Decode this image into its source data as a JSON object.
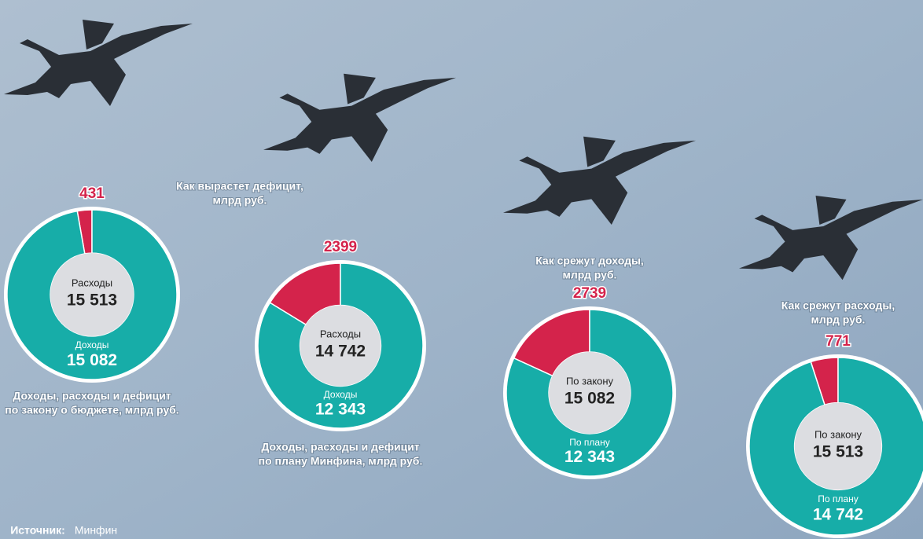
{
  "annotation": [
    "Как вырастет дефицит,",
    "млрд руб."
  ],
  "source_label": "Источник:",
  "source": "Минфин",
  "chart_data": [
    {
      "type": "donut",
      "title": [
        "Доходы, расходы и дефицит",
        "по закону о бюджете, млрд руб."
      ],
      "total_label": "Расходы",
      "total": 15513,
      "total_value_label": "15 513",
      "categories": [
        null,
        "Доходы"
      ],
      "values": [
        431,
        15082
      ],
      "value_labels": [
        "431",
        "15 082"
      ],
      "colors": [
        "#d4234b",
        "#17ada8"
      ]
    },
    {
      "type": "donut",
      "title": [
        "Доходы, расходы и дефицит",
        "по плану Минфина, млрд руб."
      ],
      "total_label": "Расходы",
      "total": 14742,
      "total_value_label": "14 742",
      "categories": [
        null,
        "Доходы"
      ],
      "values": [
        2399,
        12343
      ],
      "value_labels": [
        "2399",
        "12 343"
      ],
      "colors": [
        "#d4234b",
        "#17ada8"
      ]
    },
    {
      "type": "donut",
      "title": [
        "Как срежут доходы,",
        "млрд руб."
      ],
      "total_label": "По закону",
      "total": 15082,
      "total_value_label": "15 082",
      "categories": [
        null,
        "По плану"
      ],
      "values": [
        2739,
        12343
      ],
      "value_labels": [
        "2739",
        "12 343"
      ],
      "colors": [
        "#d4234b",
        "#17ada8"
      ]
    },
    {
      "type": "donut",
      "title": [
        "Как срежут расходы,",
        "млрд руб."
      ],
      "total_label": "По закону",
      "total": 15513,
      "total_value_label": "15 513",
      "categories": [
        null,
        "По плану"
      ],
      "values": [
        771,
        14742
      ],
      "value_labels": [
        "771",
        "14 742"
      ],
      "colors": [
        "#d4234b",
        "#17ada8"
      ]
    }
  ]
}
